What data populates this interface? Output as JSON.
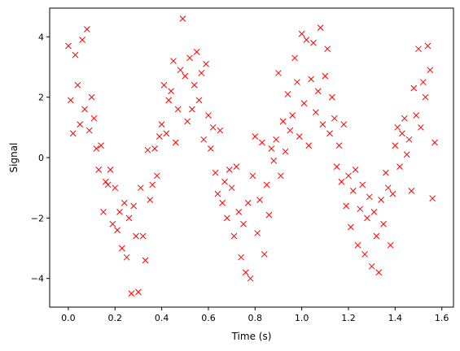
{
  "chart_data": {
    "type": "scatter",
    "title": "",
    "xlabel": "Time (s)",
    "ylabel": "Signal",
    "xlim": [
      -0.08,
      1.65
    ],
    "ylim": [
      -4.95,
      4.95
    ],
    "x_ticks": [
      0.0,
      0.2,
      0.4,
      0.6,
      0.8,
      1.0,
      1.2,
      1.4,
      1.6
    ],
    "x_tick_labels": [
      "0.0",
      "0.2",
      "0.4",
      "0.6",
      "0.8",
      "1.0",
      "1.2",
      "1.4",
      "1.6"
    ],
    "y_ticks": [
      -4,
      -2,
      0,
      2,
      4
    ],
    "y_tick_labels": [
      "−4",
      "−2",
      "0",
      "2",
      "4"
    ],
    "grid": false,
    "legend": "none",
    "marker": "x",
    "color": "#ff0000",
    "series": [
      {
        "x": [
          0.0,
          0.01,
          0.02,
          0.03,
          0.04,
          0.05,
          0.06,
          0.07,
          0.08,
          0.09,
          0.1,
          0.11,
          0.12,
          0.13,
          0.14,
          0.15,
          0.16,
          0.17,
          0.18,
          0.19,
          0.2,
          0.21,
          0.22,
          0.23,
          0.24,
          0.25,
          0.26,
          0.27,
          0.28,
          0.29,
          0.3,
          0.31,
          0.32,
          0.33,
          0.34,
          0.35,
          0.36,
          0.37,
          0.38,
          0.39,
          0.4,
          0.41,
          0.42,
          0.43,
          0.44,
          0.45,
          0.46,
          0.47,
          0.48,
          0.49,
          0.5,
          0.51,
          0.52,
          0.53,
          0.54,
          0.55,
          0.56,
          0.57,
          0.58,
          0.59,
          0.6,
          0.61,
          0.62,
          0.63,
          0.64,
          0.65,
          0.66,
          0.67,
          0.68,
          0.69,
          0.7,
          0.71,
          0.72,
          0.73,
          0.74,
          0.75,
          0.76,
          0.77,
          0.78,
          0.79,
          0.8,
          0.81,
          0.82,
          0.83,
          0.84,
          0.85,
          0.86,
          0.87,
          0.88,
          0.89,
          0.9,
          0.91,
          0.92,
          0.93,
          0.94,
          0.95,
          0.96,
          0.97,
          0.98,
          0.99,
          1.0,
          1.01,
          1.02,
          1.03,
          1.04,
          1.05,
          1.06,
          1.07,
          1.08,
          1.09,
          1.1,
          1.11,
          1.12,
          1.13,
          1.14,
          1.15,
          1.16,
          1.17,
          1.18,
          1.19,
          1.2,
          1.21,
          1.22,
          1.23,
          1.24,
          1.25,
          1.26,
          1.27,
          1.28,
          1.29,
          1.3,
          1.31,
          1.32,
          1.33,
          1.34,
          1.35,
          1.36,
          1.37,
          1.38,
          1.39,
          1.4,
          1.41,
          1.42,
          1.43,
          1.44,
          1.45,
          1.46,
          1.47,
          1.48,
          1.49,
          1.5,
          1.51,
          1.52,
          1.53,
          1.54,
          1.55,
          1.56,
          1.57
        ],
        "y": [
          3.7,
          1.9,
          0.8,
          3.4,
          2.4,
          1.1,
          3.9,
          1.6,
          4.25,
          0.9,
          2.0,
          1.3,
          0.3,
          -0.4,
          0.4,
          -1.8,
          -0.8,
          -0.9,
          -0.4,
          -2.2,
          -1.0,
          -2.4,
          -1.8,
          -3.0,
          -1.5,
          -3.3,
          -2.0,
          -4.5,
          -1.6,
          -2.6,
          -4.45,
          -1.0,
          -2.6,
          -3.4,
          0.25,
          -1.4,
          -0.9,
          0.3,
          -0.6,
          0.7,
          1.1,
          2.4,
          0.8,
          1.9,
          2.2,
          3.2,
          0.5,
          1.6,
          2.9,
          4.6,
          2.7,
          1.2,
          3.3,
          1.6,
          2.4,
          3.5,
          1.9,
          2.8,
          0.6,
          3.1,
          1.4,
          0.3,
          1.0,
          -0.5,
          -1.2,
          0.9,
          -1.5,
          -0.8,
          -2.0,
          -0.4,
          -1.0,
          -2.6,
          -0.3,
          -1.8,
          -3.3,
          -2.2,
          -3.8,
          -1.5,
          -4.0,
          -0.6,
          0.7,
          -2.5,
          -1.4,
          0.5,
          -3.2,
          -0.9,
          -1.9,
          0.3,
          -0.1,
          0.6,
          2.8,
          -0.6,
          1.2,
          0.2,
          2.1,
          0.9,
          1.4,
          3.3,
          2.5,
          0.7,
          4.1,
          1.8,
          3.9,
          0.4,
          2.6,
          3.8,
          1.5,
          2.2,
          4.3,
          1.1,
          2.7,
          3.6,
          0.8,
          2.0,
          1.3,
          -0.3,
          0.4,
          -0.8,
          1.1,
          -1.6,
          -0.6,
          -2.3,
          -1.1,
          -0.4,
          -2.9,
          -1.7,
          -0.9,
          -3.2,
          -2.0,
          -1.3,
          -3.6,
          -1.8,
          -2.6,
          -3.8,
          -1.4,
          -2.2,
          -0.5,
          -1.0,
          -2.9,
          -1.2,
          0.4,
          1.0,
          -0.3,
          0.8,
          1.3,
          0.1,
          0.6,
          -1.1,
          2.3,
          1.4,
          3.6,
          1.0,
          2.5,
          2.0,
          3.7,
          2.9,
          -1.35,
          0.5
        ]
      }
    ]
  }
}
